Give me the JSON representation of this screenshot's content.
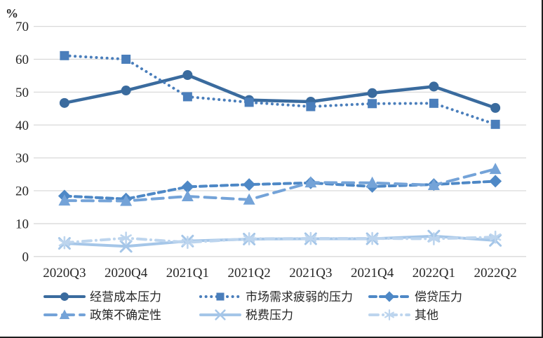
{
  "chart_data": {
    "type": "line",
    "title": "",
    "unit_label": "%",
    "xlabel": "",
    "ylabel": "%",
    "ylim": [
      0,
      70
    ],
    "yticks": [
      0,
      10,
      20,
      30,
      40,
      50,
      60,
      70
    ],
    "grid": true,
    "legend_position": "bottom",
    "categories": [
      "2020Q3",
      "2020Q4",
      "2021Q1",
      "2021Q2",
      "2021Q3",
      "2021Q4",
      "2022Q1",
      "2022Q2"
    ],
    "series": [
      {
        "id": "operating-cost-pressure",
        "name": "经营成本压力",
        "marker": "circle",
        "line": "solid",
        "color": "#3a6b9e",
        "values": [
          46.7,
          50.5,
          55.2,
          47.6,
          47.1,
          49.7,
          51.7,
          45.2
        ]
      },
      {
        "id": "weak-market-demand-pressure",
        "name": "市场需求疲弱的压力",
        "marker": "square",
        "line": "dotted",
        "color": "#4a7ebb",
        "values": [
          61.1,
          60.0,
          48.6,
          46.9,
          45.6,
          46.5,
          46.6,
          40.2
        ]
      },
      {
        "id": "loan-repayment-pressure",
        "name": "偿贷压力",
        "marker": "diamond",
        "line": "dashed",
        "color": "#4e88c6",
        "values": [
          18.4,
          17.5,
          21.2,
          21.9,
          22.4,
          21.3,
          21.9,
          22.9
        ]
      },
      {
        "id": "policy-uncertainty",
        "name": "政策不确定性",
        "marker": "triangle",
        "line": "long-dash",
        "color": "#74a3d8",
        "values": [
          17.0,
          16.9,
          18.3,
          17.3,
          22.5,
          22.4,
          21.7,
          26.6
        ]
      },
      {
        "id": "tax-fee-pressure",
        "name": "税费压力",
        "marker": "x",
        "line": "solid",
        "color": "#a5c6e8",
        "values": [
          4.0,
          3.1,
          4.7,
          5.3,
          5.4,
          5.4,
          6.2,
          4.9
        ]
      },
      {
        "id": "other",
        "name": "其他",
        "marker": "asterisk",
        "line": "dash-dot",
        "color": "#bdd5ee",
        "values": [
          4.2,
          5.6,
          4.3,
          5.4,
          5.5,
          5.5,
          5.4,
          5.9
        ]
      }
    ]
  },
  "colors": {
    "gridline": "#d9d9d9",
    "axis_text": "#262626",
    "frame_border": "#1f1f1f",
    "background": "#ffffff"
  }
}
